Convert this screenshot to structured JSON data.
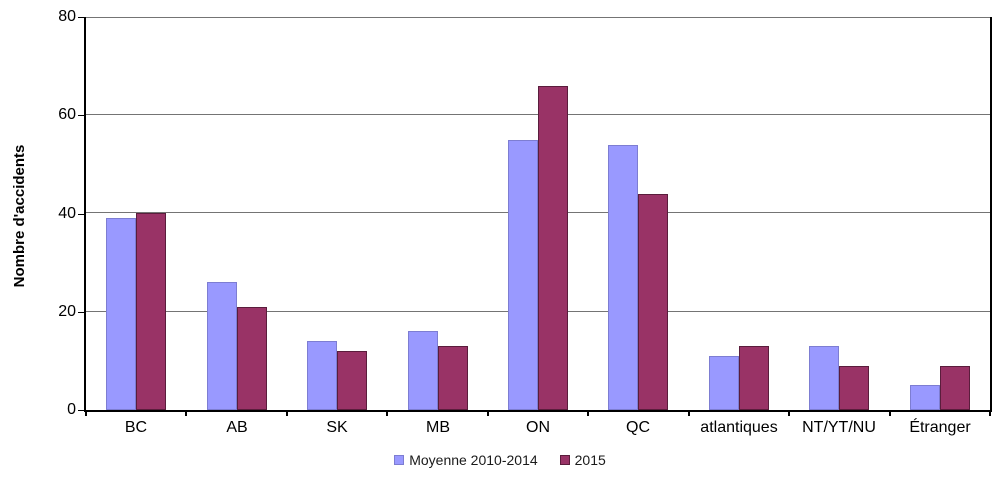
{
  "chart_data": {
    "type": "bar",
    "title": "",
    "xlabel": "",
    "ylabel": "Nombre d'accidents",
    "ylim": [
      0,
      80
    ],
    "yticks": [
      0,
      20,
      40,
      60,
      80
    ],
    "grid": "horizontal",
    "legend_position": "bottom",
    "categories": [
      "BC",
      "AB",
      "SK",
      "MB",
      "ON",
      "QC",
      "atlantiques",
      "NT/YT/NU",
      "Étranger"
    ],
    "series": [
      {
        "name": "Moyenne 2010-2014",
        "color": "#9999FF",
        "border_color": "#7d7dd2",
        "values": [
          39,
          26,
          14,
          16,
          55,
          54,
          11,
          13,
          5
        ]
      },
      {
        "name": "2015",
        "color": "#993366",
        "border_color": "#5a1d3c",
        "values": [
          40,
          21,
          12,
          13,
          66,
          44,
          13,
          9,
          9
        ]
      }
    ],
    "colors": {
      "background": "#FFFFFF",
      "axis": "#000000",
      "gridline": "#747474",
      "text": "#000000"
    }
  }
}
